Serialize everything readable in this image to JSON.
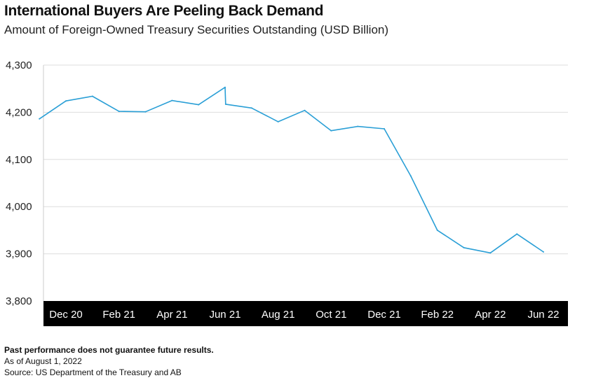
{
  "title": "International Buyers Are Peeling Back Demand",
  "subtitle": "Amount of Foreign-Owned Treasury Securities Outstanding (USD Billion)",
  "colors": {
    "line": "#2a9fd6",
    "axis_band": "#000000",
    "axis_text": "#ffffff",
    "grid": "#dddddd"
  },
  "chart_data": {
    "type": "line",
    "title": "International Buyers Are Peeling Back Demand",
    "subtitle": "Amount of Foreign-Owned Treasury Securities Outstanding (USD Billion)",
    "ylim": [
      3800,
      4300
    ],
    "yticks": [
      3800,
      3900,
      4000,
      4100,
      4200,
      4300
    ],
    "ytick_labels": [
      "3,800",
      "3,900",
      "4,000",
      "4,100",
      "4,200",
      "4,300"
    ],
    "xtick_labels": [
      "Dec 20",
      "Feb 21",
      "Apr 21",
      "Jun 21",
      "Aug 21",
      "Oct 21",
      "Dec 21",
      "Feb 22",
      "Apr 22",
      "Jun 22"
    ],
    "grid": true,
    "series": [
      {
        "x": [
          "Nov 20",
          "Dec 20",
          "Jan 21",
          "Feb 21",
          "Mar 21",
          "Apr 21",
          "May 21",
          "Jun 21",
          "Jun 21",
          "Jul 21",
          "Aug 21",
          "Sep 21",
          "Oct 21",
          "Nov 21",
          "Dec 21",
          "Jan 22",
          "Feb 22",
          "Mar 22",
          "Apr 22",
          "May 22",
          "Jun 22"
        ],
        "values": [
          4186,
          4224,
          4234,
          4202,
          4201,
          4225,
          4216,
          4253,
          4217,
          4209,
          4180,
          4204,
          4161,
          4170,
          4165,
          4065,
          3950,
          3913,
          3902,
          3942,
          3904
        ]
      }
    ]
  },
  "footer": {
    "disclaimer": "Past performance does not guarantee future results.",
    "as_of": "As of August 1, 2022",
    "source": "Source: US Department of the Treasury and AB"
  }
}
